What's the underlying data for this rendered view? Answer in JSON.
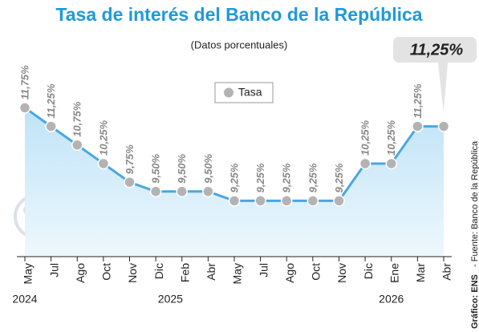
{
  "chart_data": {
    "type": "line",
    "title": "Tasa de interés del Banco de la República",
    "subtitle": "(Datos porcentuales)",
    "categories": [
      "May",
      "Jul",
      "Ago",
      "Oct",
      "Nov",
      "Dic",
      "Feb",
      "Abr",
      "May",
      "Jul",
      "Ago",
      "Oct",
      "Nov",
      "Dic",
      "Ene",
      "Mar",
      "Abr"
    ],
    "years": [
      "2024",
      "2025",
      "2026"
    ],
    "series": [
      {
        "name": "Tasa",
        "color": "#4ba6e3",
        "values": [
          11.75,
          11.25,
          10.75,
          10.25,
          9.75,
          9.5,
          9.5,
          9.5,
          9.25,
          9.25,
          9.25,
          9.25,
          9.25,
          10.25,
          10.25,
          11.25,
          11.25
        ],
        "value_labels": [
          "11,75%",
          "11,25%",
          "10,75%",
          "10,25%",
          "9,75%",
          "9,50%",
          "9,50%",
          "9,50%",
          "9,25%",
          "9,25%",
          "9,25%",
          "9,25%",
          "9,25%",
          "10,25%",
          "10,25%",
          "11,25%",
          "11,25%"
        ]
      }
    ],
    "ylim": [
      7.75,
      12.5
    ],
    "credit": "Gráfico: ENS",
    "source": "- Fuente: Banco de la República"
  }
}
